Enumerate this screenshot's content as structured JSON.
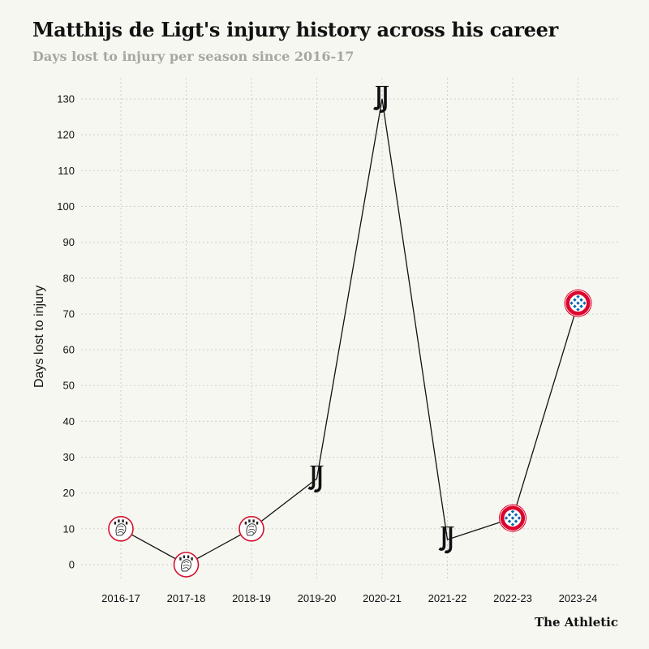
{
  "title": "Matthijs de Ligt's injury history across his career",
  "subtitle": "Days lost to injury per season since 2016-17",
  "brand": "The Athletic",
  "chart_data": {
    "type": "line",
    "title": "Matthijs de Ligt's injury history across his career",
    "subtitle": "Days lost to injury per season since 2016-17",
    "xlabel": "",
    "ylabel": "Days lost to injury",
    "categories": [
      "2016-17",
      "2017-18",
      "2018-19",
      "2019-20",
      "2020-21",
      "2021-22",
      "2022-23",
      "2023-24"
    ],
    "series": [
      {
        "values": [
          10,
          0,
          10,
          24,
          130,
          7,
          13,
          73
        ],
        "clubs": [
          "ajax",
          "ajax",
          "ajax",
          "juventus",
          "juventus",
          "juventus",
          "bayern",
          "bayern"
        ]
      }
    ],
    "yticks": [
      0,
      10,
      20,
      30,
      40,
      50,
      60,
      70,
      80,
      90,
      100,
      110,
      120,
      130
    ],
    "ylim": [
      0,
      130
    ],
    "grid": true,
    "colors": {
      "line": "#121212",
      "grid": "#cfcfca",
      "ajax": "#d2122e",
      "bayern": "#dc052d",
      "bayern_blue": "#0066b2"
    }
  }
}
